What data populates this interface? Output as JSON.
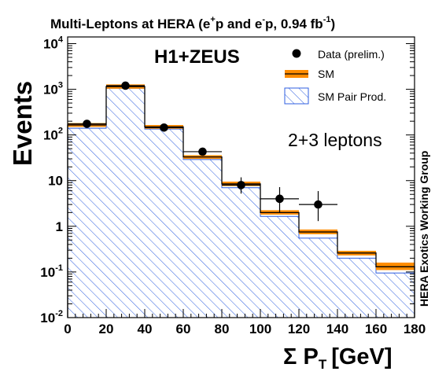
{
  "chart_data": {
    "type": "bar",
    "title": {
      "prefix": "Multi-Leptons at HERA (e",
      "sup1": "+",
      "mid": "p and e",
      "sup2": "-",
      "suffix": "p, 0.94 fb",
      "sup3": "-1",
      "end": ")"
    },
    "xlabel": {
      "main": "Σ P",
      "sub": "T",
      "unit": "[GeV]"
    },
    "ylabel": "Events",
    "experiment_label": "H1+ZEUS",
    "annotation": "2+3 leptons",
    "side_note": "HERA Exotics Working Group",
    "bin_edges": [
      0,
      20,
      40,
      60,
      80,
      100,
      120,
      140,
      160,
      180
    ],
    "xlim": [
      0,
      180
    ],
    "ylim": [
      0.01,
      14000
    ],
    "yscale": "log",
    "x_ticks": [
      "0",
      "20",
      "40",
      "60",
      "80",
      "100",
      "120",
      "140",
      "160",
      "180"
    ],
    "y_ticks": [
      {
        "value": 0.01,
        "base": "10",
        "exp": "-2"
      },
      {
        "value": 0.1,
        "base": "10",
        "exp": "-1"
      },
      {
        "value": 1,
        "base": "1",
        "exp": ""
      },
      {
        "value": 10,
        "base": "10",
        "exp": ""
      },
      {
        "value": 100,
        "base": "10",
        "exp": "2"
      },
      {
        "value": 1000,
        "base": "10",
        "exp": "3"
      },
      {
        "value": 10000,
        "base": "10",
        "exp": "4"
      }
    ],
    "legend": {
      "position": "top-right",
      "entries": [
        "Data (prelim.)",
        "SM",
        "SM Pair Prod."
      ]
    },
    "series": [
      {
        "name": "SM",
        "style": "band",
        "values": [
          165,
          1150,
          150,
          33,
          8.5,
          2.0,
          0.75,
          0.26,
          0.13
        ],
        "band_low": [
          150,
          1030,
          137,
          30,
          7.6,
          1.8,
          0.67,
          0.23,
          0.11
        ],
        "band_high": [
          182,
          1280,
          165,
          36,
          9.5,
          2.25,
          0.85,
          0.29,
          0.16
        ]
      },
      {
        "name": "SM Pair Prod.",
        "style": "hatched",
        "values": [
          140,
          1050,
          135,
          29,
          7.0,
          1.65,
          0.55,
          0.2,
          0.095
        ]
      },
      {
        "name": "Data (prelim.)",
        "style": "points",
        "x": [
          10,
          30,
          50,
          70,
          90,
          110,
          130
        ],
        "y": [
          175,
          1200,
          145,
          43,
          8,
          4,
          3
        ],
        "y_err_low": [
          13,
          35,
          12,
          6.5,
          2.8,
          2.0,
          1.7
        ],
        "y_err_high": [
          14,
          36,
          13,
          7.5,
          3.8,
          3.2,
          2.9
        ]
      }
    ]
  },
  "colors": {
    "band": "#ff8c00",
    "hatch": "#2f5fe0",
    "data": "#000000",
    "axis": "#000000",
    "background": "#ffffff"
  }
}
